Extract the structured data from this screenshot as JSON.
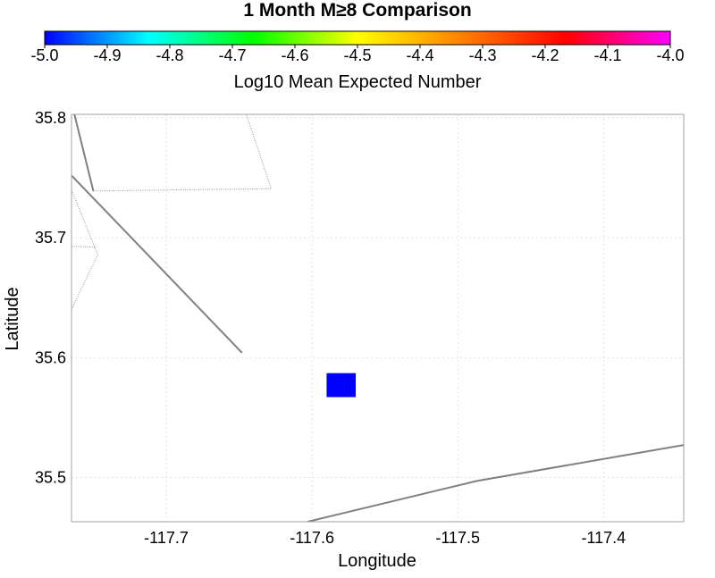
{
  "title": "1 Month M≥8 Comparison",
  "colorbar": {
    "label": "Log10 Mean Expected Number",
    "range": [
      -5.0,
      -4.0
    ],
    "ticks": [
      "-5.0",
      "-4.9",
      "-4.8",
      "-4.7",
      "-4.6",
      "-4.5",
      "-4.4",
      "-4.3",
      "-4.2",
      "-4.1",
      "-4.0"
    ],
    "colors": [
      "#0000ff",
      "#00ffff",
      "#00ff00",
      "#ffff00",
      "#ff8000",
      "#ff0000",
      "#ff00ff"
    ]
  },
  "map": {
    "xlabel": "Longitude",
    "ylabel": "Latitude",
    "xlim": [
      -117.765,
      -117.345
    ],
    "ylim": [
      35.463,
      35.803
    ],
    "xticks": [
      "-117.7",
      "-117.6",
      "-117.5",
      "-117.4"
    ],
    "yticks": [
      "35.5",
      "35.6",
      "35.7",
      "35.8"
    ],
    "cell": {
      "lon": [
        -117.59,
        -117.57
      ],
      "lat": [
        35.567,
        35.587
      ],
      "value": -5.0,
      "color": "#0000ff"
    },
    "fault_color": "#808080",
    "faults": [
      [
        [
          -117.763,
          35.803
        ],
        [
          -117.75,
          35.739
        ]
      ],
      [
        [
          -117.765,
          35.752
        ],
        [
          -117.648,
          35.604
        ]
      ],
      [
        [
          -117.603,
          35.463
        ],
        [
          -117.487,
          35.497
        ],
        [
          -117.345,
          35.527
        ]
      ]
    ],
    "boundaries": [
      [
        [
          -117.75,
          35.739
        ],
        [
          -117.628,
          35.741
        ],
        [
          -117.645,
          35.803
        ]
      ],
      [
        [
          -117.765,
          35.74
        ],
        [
          -117.747,
          35.686
        ],
        [
          -117.765,
          35.64
        ]
      ],
      [
        [
          -117.765,
          35.693
        ],
        [
          -117.748,
          35.692
        ]
      ]
    ]
  }
}
